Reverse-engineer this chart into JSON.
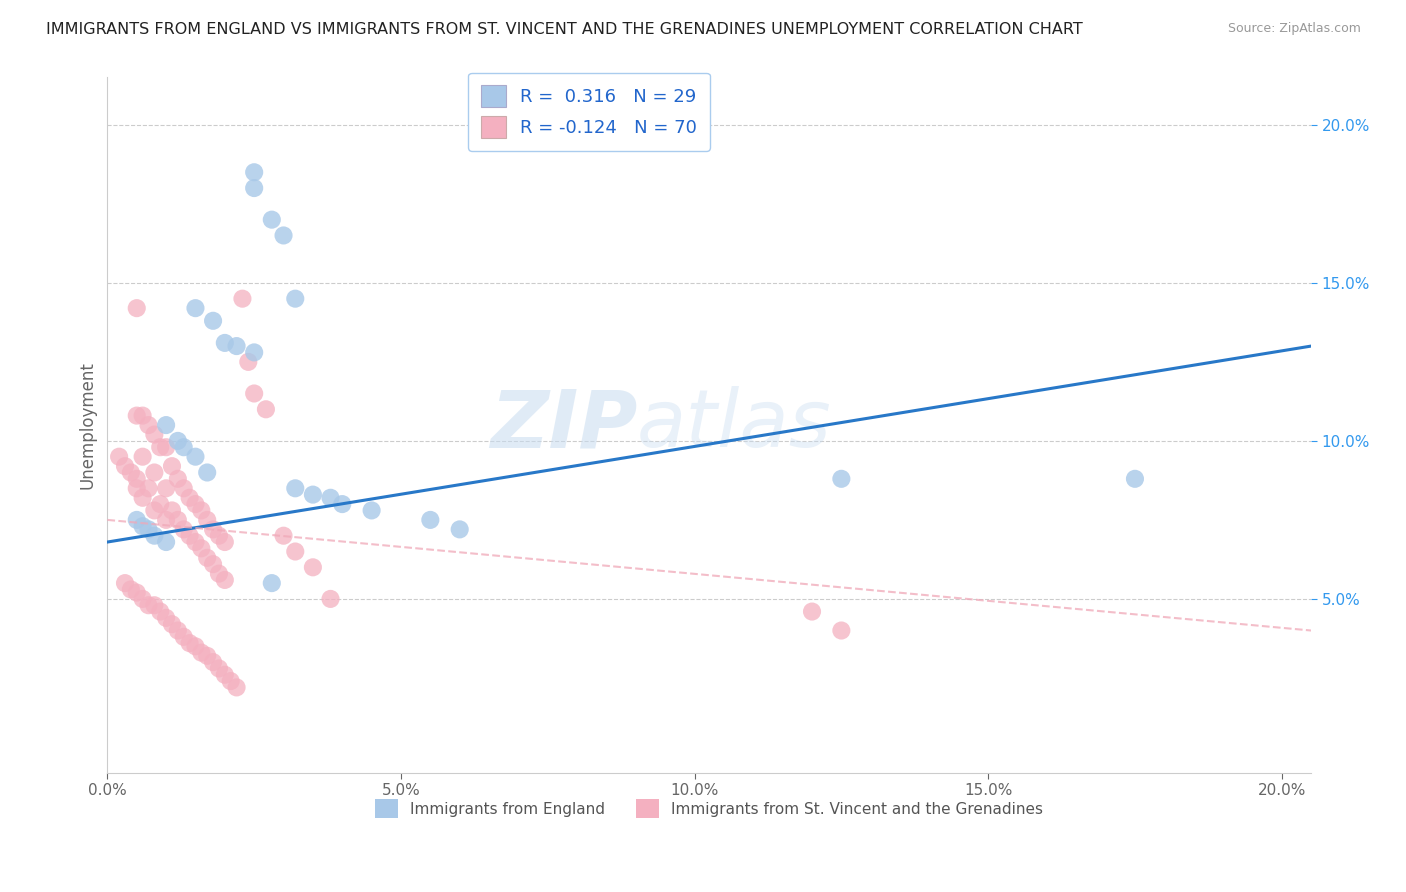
{
  "title": "IMMIGRANTS FROM ENGLAND VS IMMIGRANTS FROM ST. VINCENT AND THE GRENADINES UNEMPLOYMENT CORRELATION CHART",
  "source": "Source: ZipAtlas.com",
  "ylabel": "Unemployment",
  "xlim": [
    0.0,
    0.205
  ],
  "ylim": [
    -0.005,
    0.215
  ],
  "xticks": [
    0.0,
    0.05,
    0.1,
    0.15,
    0.2
  ],
  "xtick_labels": [
    "0.0%",
    "5.0%",
    "10.0%",
    "15.0%",
    "20.0%"
  ],
  "yticks_right": [
    0.05,
    0.1,
    0.15,
    0.2
  ],
  "ytick_labels_right": [
    "5.0%",
    "10.0%",
    "15.0%",
    "20.0%"
  ],
  "blue_fill": "#A8C8E8",
  "pink_fill": "#F4B0C0",
  "blue_line": "#2878C8",
  "pink_line": "#F0A8B8",
  "grid_color": "#CCCCCC",
  "legend_label_blue": "Immigrants from England",
  "legend_label_pink": "Immigrants from St. Vincent and the Grenadines",
  "watermark_zip": "ZIP",
  "watermark_atlas": "atlas",
  "blue_x": [
    0.025,
    0.025,
    0.028,
    0.03,
    0.032,
    0.015,
    0.018,
    0.02,
    0.022,
    0.025,
    0.01,
    0.012,
    0.013,
    0.015,
    0.017,
    0.005,
    0.006,
    0.007,
    0.008,
    0.01,
    0.032,
    0.035,
    0.038,
    0.04,
    0.045,
    0.055,
    0.06,
    0.125,
    0.175,
    0.028
  ],
  "blue_y": [
    0.185,
    0.18,
    0.17,
    0.165,
    0.145,
    0.142,
    0.138,
    0.131,
    0.13,
    0.128,
    0.105,
    0.1,
    0.098,
    0.095,
    0.09,
    0.075,
    0.073,
    0.072,
    0.07,
    0.068,
    0.085,
    0.083,
    0.082,
    0.08,
    0.078,
    0.075,
    0.072,
    0.088,
    0.088,
    0.055
  ],
  "pink_x": [
    0.002,
    0.003,
    0.004,
    0.005,
    0.005,
    0.005,
    0.005,
    0.006,
    0.006,
    0.006,
    0.007,
    0.007,
    0.008,
    0.008,
    0.008,
    0.009,
    0.009,
    0.01,
    0.01,
    0.01,
    0.011,
    0.011,
    0.012,
    0.012,
    0.013,
    0.013,
    0.014,
    0.014,
    0.015,
    0.015,
    0.016,
    0.016,
    0.017,
    0.017,
    0.018,
    0.018,
    0.019,
    0.019,
    0.02,
    0.02,
    0.003,
    0.004,
    0.005,
    0.006,
    0.007,
    0.008,
    0.009,
    0.01,
    0.011,
    0.012,
    0.013,
    0.014,
    0.015,
    0.016,
    0.017,
    0.018,
    0.019,
    0.02,
    0.021,
    0.022,
    0.023,
    0.024,
    0.025,
    0.027,
    0.03,
    0.032,
    0.035,
    0.038,
    0.12,
    0.125
  ],
  "pink_y": [
    0.095,
    0.092,
    0.09,
    0.142,
    0.108,
    0.088,
    0.085,
    0.108,
    0.095,
    0.082,
    0.105,
    0.085,
    0.102,
    0.09,
    0.078,
    0.098,
    0.08,
    0.098,
    0.085,
    0.075,
    0.092,
    0.078,
    0.088,
    0.075,
    0.085,
    0.072,
    0.082,
    0.07,
    0.08,
    0.068,
    0.078,
    0.066,
    0.075,
    0.063,
    0.072,
    0.061,
    0.07,
    0.058,
    0.068,
    0.056,
    0.055,
    0.053,
    0.052,
    0.05,
    0.048,
    0.048,
    0.046,
    0.044,
    0.042,
    0.04,
    0.038,
    0.036,
    0.035,
    0.033,
    0.032,
    0.03,
    0.028,
    0.026,
    0.024,
    0.022,
    0.145,
    0.125,
    0.115,
    0.11,
    0.07,
    0.065,
    0.06,
    0.05,
    0.046,
    0.04
  ]
}
